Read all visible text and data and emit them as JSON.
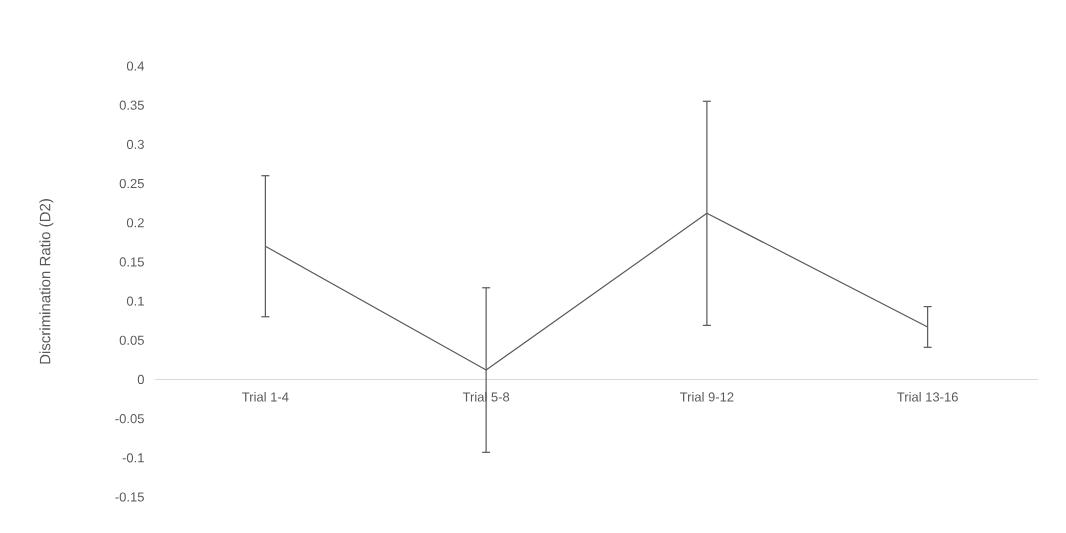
{
  "chart_data": {
    "type": "line",
    "ylabel": "Discrimination Ratio (D2)",
    "categories": [
      "Trial 1-4",
      "Trial 5-8",
      "Trial 9-12",
      "Trial 13-16"
    ],
    "values": [
      0.17,
      0.012,
      0.212,
      0.067
    ],
    "errors": [
      0.09,
      0.105,
      0.143,
      0.026
    ],
    "color": "#595959",
    "ylim": [
      -0.15,
      0.4
    ],
    "yticks": [
      -0.15,
      -0.1,
      -0.05,
      0,
      0.05,
      0.1,
      0.15,
      0.2,
      0.25,
      0.3,
      0.35,
      0.4
    ]
  }
}
